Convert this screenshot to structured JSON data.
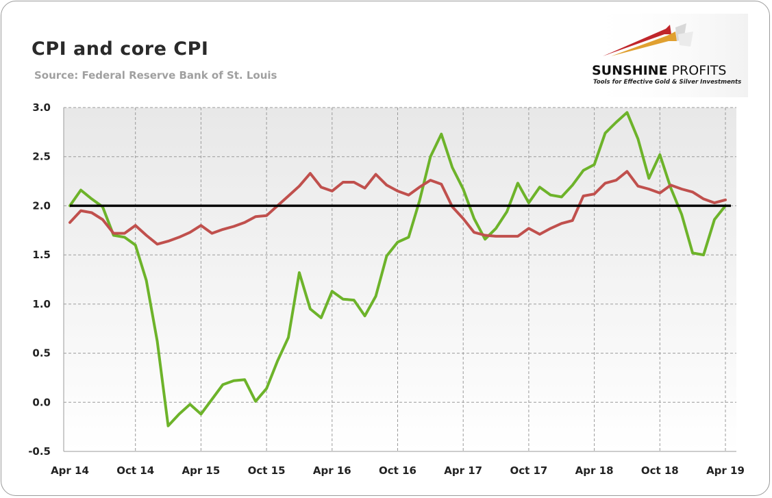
{
  "title": "CPI and core CPI",
  "subtitle": "Source: Federal Reserve Bank of St. Louis",
  "logo": {
    "name_bold": "SUNSHINE",
    "name_regular": " PROFITS",
    "tagline": "Tools for Effective Gold & Silver Investments"
  },
  "colors": {
    "cpi": "#6db32a",
    "core_cpi": "#c0504d",
    "reference": "#000000",
    "plot_bg_top": "#e8e8e8",
    "plot_bg_bottom": "#ffffff",
    "grid": "#9a9a9a"
  },
  "chart_data": {
    "type": "line",
    "title": "CPI and core CPI",
    "xlabel": "",
    "ylabel": "",
    "ylim": [
      -0.5,
      3.0
    ],
    "yticks": [
      "3.0",
      "2.5",
      "2.0",
      "1.5",
      "1.0",
      "0.5",
      "0.0",
      "-0.5"
    ],
    "ytick_values": [
      3.0,
      2.5,
      2.0,
      1.5,
      1.0,
      0.5,
      0.0,
      -0.5
    ],
    "xticks": [
      "Apr 14",
      "Oct 14",
      "Apr 15",
      "Oct 15",
      "Apr 16",
      "Oct 16",
      "Apr 17",
      "Oct 17",
      "Apr 18",
      "Oct 18",
      "Apr 19"
    ],
    "x_start": "Apr 14",
    "x_end": "Apr 19",
    "x_frequency": "monthly",
    "grid": true,
    "reference_line": 2.0,
    "series": [
      {
        "values": [
          2.0,
          2.16,
          2.07,
          1.99,
          1.7,
          1.68,
          1.6,
          1.24,
          0.62,
          -0.24,
          -0.12,
          -0.02,
          -0.12,
          0.03,
          0.18,
          0.22,
          0.23,
          0.01,
          0.14,
          0.42,
          0.66,
          1.32,
          0.95,
          0.86,
          1.13,
          1.05,
          1.04,
          0.88,
          1.08,
          1.49,
          1.63,
          1.68,
          2.05,
          2.5,
          2.73,
          2.39,
          2.17,
          1.87,
          1.66,
          1.77,
          1.94,
          2.23,
          2.03,
          2.19,
          2.11,
          2.09,
          2.21,
          2.36,
          2.42,
          2.74,
          2.85,
          2.95,
          2.68,
          2.28,
          2.52,
          2.18,
          1.91,
          1.52,
          1.5,
          1.86,
          2.0
        ]
      },
      {
        "values": [
          1.83,
          1.95,
          1.93,
          1.86,
          1.72,
          1.72,
          1.8,
          1.7,
          1.61,
          1.64,
          1.68,
          1.73,
          1.8,
          1.72,
          1.76,
          1.79,
          1.83,
          1.89,
          1.9,
          2.0,
          2.1,
          2.2,
          2.33,
          2.19,
          2.15,
          2.24,
          2.24,
          2.18,
          2.32,
          2.21,
          2.15,
          2.11,
          2.19,
          2.26,
          2.22,
          1.99,
          1.87,
          1.73,
          1.7,
          1.69,
          1.69,
          1.69,
          1.77,
          1.71,
          1.77,
          1.82,
          1.85,
          2.1,
          2.12,
          2.23,
          2.26,
          2.35,
          2.2,
          2.17,
          2.13,
          2.21,
          2.17,
          2.14,
          2.07,
          2.03,
          2.06
        ]
      }
    ]
  }
}
